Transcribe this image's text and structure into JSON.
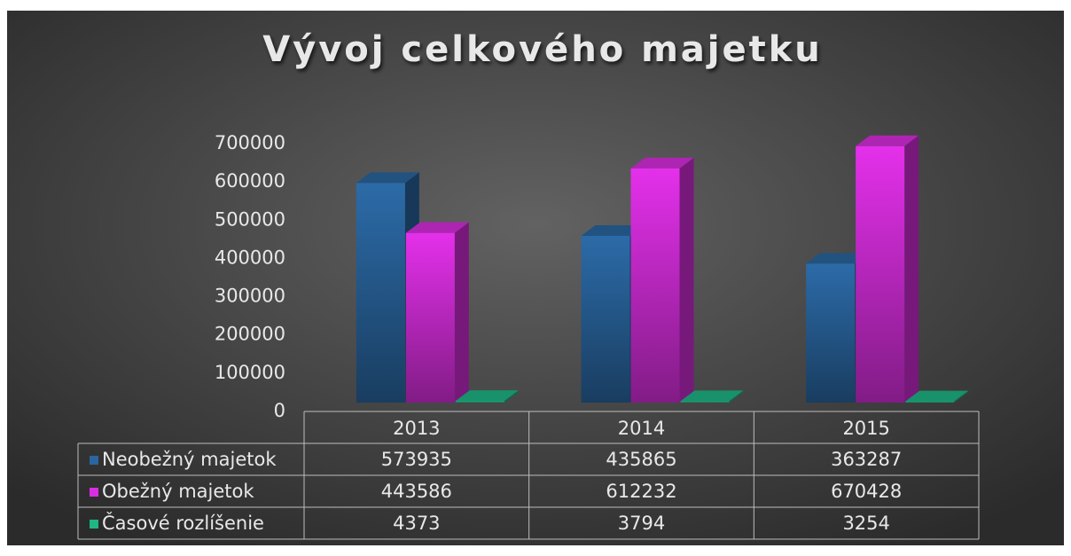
{
  "chart_data": {
    "type": "bar3d",
    "title": "Vývoj celkového majetku",
    "categories": [
      "2013",
      "2014",
      "2015"
    ],
    "series": [
      {
        "name": "Neobežný majetok",
        "color": "#2a66a0",
        "values": [
          573935,
          435865,
          363287
        ]
      },
      {
        "name": "Obežný majetok",
        "color": "#d92ee0",
        "values": [
          443586,
          612232,
          670428
        ]
      },
      {
        "name": "Časové rozlíšenie",
        "color": "#1fb584",
        "values": [
          4373,
          3794,
          3254
        ]
      }
    ],
    "ylim": [
      0,
      700000
    ],
    "yticks": [
      0,
      100000,
      200000,
      300000,
      400000,
      500000,
      600000,
      700000
    ]
  }
}
